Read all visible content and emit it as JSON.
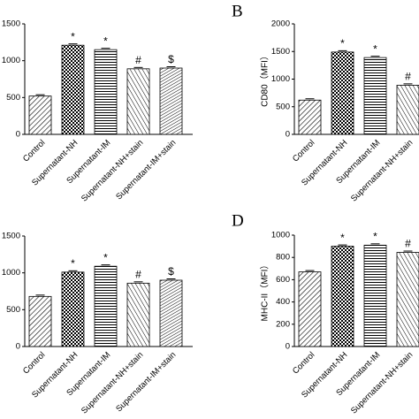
{
  "chart_data": [
    {
      "type": "bar",
      "categories": [
        "Control",
        "Supernatant-NH",
        "Supernatant-IM",
        "Supernatant-NH+stain",
        "Supernatant-IM+stain"
      ],
      "values": [
        520,
        1210,
        1150,
        890,
        900
      ],
      "annotations": [
        null,
        "*",
        "*",
        "#",
        "$"
      ],
      "ylim": [
        0,
        1500
      ],
      "yticks": [
        0,
        500,
        1000,
        1500
      ]
    },
    {
      "type": "bar",
      "title": "B",
      "ylabel": "CD80（MFI）",
      "categories": [
        "Control",
        "Supernatant-NH",
        "Supernatant-IM",
        "Supernatant-NH+stain"
      ],
      "values": [
        620,
        1490,
        1390,
        890
      ],
      "annotations": [
        null,
        "*",
        "*",
        "#"
      ],
      "ylim": [
        0,
        2000
      ],
      "yticks": [
        0,
        500,
        1000,
        1500,
        2000
      ]
    },
    {
      "type": "bar",
      "categories": [
        "Control",
        "Supernatant-NH",
        "Supernatant-IM",
        "Supernatant-NH+stain",
        "Supernatant-IM+stain"
      ],
      "values": [
        680,
        1010,
        1090,
        860,
        900
      ],
      "annotations": [
        null,
        "*",
        "*",
        "#",
        "$"
      ],
      "ylim": [
        0,
        1500
      ],
      "yticks": [
        0,
        500,
        1000,
        1500
      ]
    },
    {
      "type": "bar",
      "title": "D",
      "ylabel": "MHC-II（MFI）",
      "categories": [
        "Control",
        "Supernatant-NH",
        "Supernatant-IM",
        "Supernatant-NH+stain"
      ],
      "values": [
        670,
        900,
        910,
        845
      ],
      "annotations": [
        null,
        "*",
        "*",
        "#"
      ],
      "ylim": [
        0,
        1000
      ],
      "yticks": [
        0,
        200,
        400,
        600,
        800,
        1000
      ]
    }
  ]
}
